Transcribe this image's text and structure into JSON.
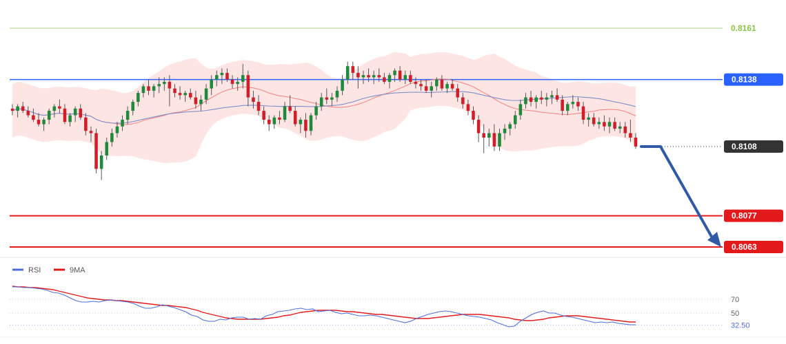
{
  "chart_data": {
    "type": "candlestick",
    "price_levels": [
      {
        "value": "0.8161",
        "role": "upper-target",
        "color": "#8bc34a"
      },
      {
        "value": "0.8138",
        "role": "resistance",
        "color": "#2962ff"
      },
      {
        "value": "0.8108",
        "role": "current-price",
        "color": "#333333"
      },
      {
        "value": "0.8077",
        "role": "support",
        "color": "#e31a1c"
      },
      {
        "value": "0.8063",
        "role": "support",
        "color": "#e31a1c"
      }
    ],
    "y_range": [
      0.804,
      0.817
    ],
    "candles": [
      [
        0.8125,
        0.8127,
        0.8122,
        0.8124
      ],
      [
        0.8124,
        0.8127,
        0.8121,
        0.8126
      ],
      [
        0.8126,
        0.8128,
        0.8123,
        0.8124
      ],
      [
        0.8124,
        0.8126,
        0.8121,
        0.8122
      ],
      [
        0.8122,
        0.8125,
        0.8119,
        0.812
      ],
      [
        0.812,
        0.8123,
        0.8117,
        0.8118
      ],
      [
        0.8118,
        0.8121,
        0.8115,
        0.812
      ],
      [
        0.812,
        0.8125,
        0.8118,
        0.8124
      ],
      [
        0.8124,
        0.8127,
        0.8121,
        0.8126
      ],
      [
        0.8126,
        0.8129,
        0.8123,
        0.8125
      ],
      [
        0.8125,
        0.8127,
        0.8118,
        0.8119
      ],
      [
        0.8119,
        0.8123,
        0.8117,
        0.8122
      ],
      [
        0.8122,
        0.8126,
        0.8119,
        0.8125
      ],
      [
        0.8125,
        0.8127,
        0.812,
        0.8121
      ],
      [
        0.8121,
        0.8123,
        0.8113,
        0.8115
      ],
      [
        0.8115,
        0.8117,
        0.811,
        0.8114
      ],
      [
        0.8114,
        0.8116,
        0.8096,
        0.8098
      ],
      [
        0.8098,
        0.8106,
        0.8093,
        0.8104
      ],
      [
        0.8104,
        0.8112,
        0.8102,
        0.811
      ],
      [
        0.811,
        0.8116,
        0.8108,
        0.8114
      ],
      [
        0.8114,
        0.8119,
        0.8112,
        0.8117
      ],
      [
        0.8117,
        0.8122,
        0.8115,
        0.812
      ],
      [
        0.812,
        0.8126,
        0.8118,
        0.8124
      ],
      [
        0.8124,
        0.8129,
        0.8122,
        0.8128
      ],
      [
        0.8128,
        0.8133,
        0.8126,
        0.8132
      ],
      [
        0.8132,
        0.8136,
        0.813,
        0.8135
      ],
      [
        0.8135,
        0.8138,
        0.8131,
        0.8133
      ],
      [
        0.8133,
        0.8136,
        0.813,
        0.8135
      ],
      [
        0.8135,
        0.8139,
        0.8132,
        0.8136
      ],
      [
        0.8136,
        0.8139,
        0.8133,
        0.8137
      ],
      [
        0.8137,
        0.814,
        0.8126,
        0.8134
      ],
      [
        0.8134,
        0.8136,
        0.813,
        0.8132
      ],
      [
        0.8132,
        0.8135,
        0.8129,
        0.8131
      ],
      [
        0.8131,
        0.8133,
        0.8128,
        0.8132
      ],
      [
        0.8132,
        0.8134,
        0.8129,
        0.813
      ],
      [
        0.813,
        0.8133,
        0.8125,
        0.8127
      ],
      [
        0.8127,
        0.8131,
        0.8124,
        0.8129
      ],
      [
        0.8129,
        0.8136,
        0.8127,
        0.8134
      ],
      [
        0.8134,
        0.814,
        0.8131,
        0.8138
      ],
      [
        0.8138,
        0.8142,
        0.8135,
        0.814
      ],
      [
        0.814,
        0.8143,
        0.8136,
        0.8141
      ],
      [
        0.8141,
        0.8143,
        0.8137,
        0.8138
      ],
      [
        0.8138,
        0.814,
        0.8134,
        0.8136
      ],
      [
        0.8136,
        0.8139,
        0.8133,
        0.8137
      ],
      [
        0.8137,
        0.8145,
        0.8134,
        0.814
      ],
      [
        0.814,
        0.8142,
        0.8126,
        0.813
      ],
      [
        0.813,
        0.8133,
        0.8125,
        0.8128
      ],
      [
        0.8128,
        0.8131,
        0.8122,
        0.8124
      ],
      [
        0.8124,
        0.8126,
        0.8118,
        0.812
      ],
      [
        0.812,
        0.8122,
        0.8115,
        0.8118
      ],
      [
        0.8118,
        0.8122,
        0.8116,
        0.8121
      ],
      [
        0.8121,
        0.8124,
        0.8118,
        0.812
      ],
      [
        0.812,
        0.8128,
        0.8119,
        0.8126
      ],
      [
        0.8126,
        0.8131,
        0.8123,
        0.8124
      ],
      [
        0.8124,
        0.8126,
        0.8117,
        0.8118
      ],
      [
        0.8118,
        0.8121,
        0.8114,
        0.812
      ],
      [
        0.812,
        0.8123,
        0.8112,
        0.8115
      ],
      [
        0.8115,
        0.8123,
        0.8113,
        0.8122
      ],
      [
        0.8122,
        0.8128,
        0.812,
        0.8126
      ],
      [
        0.8126,
        0.8132,
        0.8124,
        0.813
      ],
      [
        0.813,
        0.8134,
        0.8127,
        0.8129
      ],
      [
        0.8129,
        0.8132,
        0.8126,
        0.813
      ],
      [
        0.813,
        0.8135,
        0.8128,
        0.8133
      ],
      [
        0.8133,
        0.814,
        0.8131,
        0.8138
      ],
      [
        0.8138,
        0.8146,
        0.8136,
        0.8144
      ],
      [
        0.8144,
        0.8146,
        0.8138,
        0.8141
      ],
      [
        0.8141,
        0.8144,
        0.8134,
        0.8139
      ],
      [
        0.8139,
        0.8142,
        0.8136,
        0.814
      ],
      [
        0.814,
        0.8143,
        0.8137,
        0.8139
      ],
      [
        0.8139,
        0.8142,
        0.8136,
        0.814
      ],
      [
        0.814,
        0.8143,
        0.8137,
        0.8139
      ],
      [
        0.8139,
        0.8141,
        0.8136,
        0.8137
      ],
      [
        0.8137,
        0.8141,
        0.8134,
        0.814
      ],
      [
        0.814,
        0.8143,
        0.8137,
        0.8142
      ],
      [
        0.8142,
        0.8144,
        0.8137,
        0.8138
      ],
      [
        0.8138,
        0.8142,
        0.8136,
        0.814
      ],
      [
        0.814,
        0.8142,
        0.8136,
        0.8137
      ],
      [
        0.8137,
        0.8139,
        0.8134,
        0.8136
      ],
      [
        0.8136,
        0.8138,
        0.8133,
        0.8135
      ],
      [
        0.8135,
        0.8138,
        0.8132,
        0.8133
      ],
      [
        0.8133,
        0.8137,
        0.813,
        0.8135
      ],
      [
        0.8135,
        0.8139,
        0.8133,
        0.8138
      ],
      [
        0.8138,
        0.814,
        0.8133,
        0.8134
      ],
      [
        0.8134,
        0.8137,
        0.8132,
        0.8136
      ],
      [
        0.8136,
        0.8138,
        0.8133,
        0.8134
      ],
      [
        0.8134,
        0.8136,
        0.8128,
        0.813
      ],
      [
        0.813,
        0.8132,
        0.8125,
        0.8127
      ],
      [
        0.8127,
        0.8129,
        0.8122,
        0.8124
      ],
      [
        0.8124,
        0.8126,
        0.8118,
        0.812
      ],
      [
        0.812,
        0.8122,
        0.811,
        0.8114
      ],
      [
        0.8114,
        0.8118,
        0.8105,
        0.8112
      ],
      [
        0.8112,
        0.8116,
        0.8108,
        0.8114
      ],
      [
        0.8114,
        0.8118,
        0.8106,
        0.8108
      ],
      [
        0.8108,
        0.8116,
        0.8106,
        0.8114
      ],
      [
        0.8114,
        0.8118,
        0.8111,
        0.8116
      ],
      [
        0.8116,
        0.8119,
        0.8113,
        0.8118
      ],
      [
        0.8118,
        0.8124,
        0.8116,
        0.8122
      ],
      [
        0.8122,
        0.8129,
        0.812,
        0.8127
      ],
      [
        0.8127,
        0.8132,
        0.8125,
        0.813
      ],
      [
        0.813,
        0.8133,
        0.8126,
        0.8128
      ],
      [
        0.8128,
        0.8131,
        0.8125,
        0.813
      ],
      [
        0.813,
        0.8133,
        0.8127,
        0.8129
      ],
      [
        0.8129,
        0.8132,
        0.8126,
        0.813
      ],
      [
        0.813,
        0.8133,
        0.8127,
        0.8131
      ],
      [
        0.8131,
        0.8134,
        0.8128,
        0.8129
      ],
      [
        0.8129,
        0.8131,
        0.8122,
        0.8124
      ],
      [
        0.8124,
        0.8128,
        0.8122,
        0.8127
      ],
      [
        0.8127,
        0.8131,
        0.8125,
        0.8128
      ],
      [
        0.8128,
        0.813,
        0.8124,
        0.8126
      ],
      [
        0.8126,
        0.8128,
        0.8118,
        0.812
      ],
      [
        0.812,
        0.8123,
        0.8117,
        0.8121
      ],
      [
        0.8121,
        0.8123,
        0.8117,
        0.8118
      ],
      [
        0.8118,
        0.8121,
        0.8116,
        0.8119
      ],
      [
        0.8119,
        0.8122,
        0.8115,
        0.8117
      ],
      [
        0.8117,
        0.8121,
        0.8114,
        0.8119
      ],
      [
        0.8119,
        0.8121,
        0.8115,
        0.8116
      ],
      [
        0.8116,
        0.8119,
        0.8114,
        0.8117
      ],
      [
        0.8117,
        0.8119,
        0.8112,
        0.8114
      ],
      [
        0.8114,
        0.812,
        0.811,
        0.8112
      ],
      [
        0.8112,
        0.8114,
        0.8107,
        0.8108
      ]
    ],
    "rsi": {
      "legend": [
        {
          "label": "RSI",
          "color": "#4f6fd8"
        },
        {
          "label": "9MA",
          "color": "#e31a1c"
        }
      ],
      "levels": [
        "70",
        "50",
        "32.50"
      ],
      "y_range": [
        20,
        95
      ],
      "rsi_values": [
        88,
        88,
        87,
        87,
        86,
        85,
        83,
        80,
        79,
        76,
        72,
        68,
        66,
        66,
        67,
        66,
        68,
        69,
        68,
        67,
        66,
        64,
        60,
        57,
        57,
        59,
        62,
        60,
        58,
        55,
        52,
        47,
        45,
        40,
        38,
        38,
        41,
        40,
        43,
        44,
        44,
        41,
        42,
        41,
        46,
        48,
        52,
        53,
        54,
        56,
        57,
        55,
        56,
        52,
        53,
        54,
        51,
        49,
        50,
        48,
        46,
        46,
        47,
        46,
        44,
        42,
        40,
        38,
        36,
        38,
        42,
        45,
        48,
        50,
        52,
        53,
        52,
        50,
        48,
        46,
        45,
        44,
        42,
        40,
        36,
        33,
        30,
        31,
        38,
        43,
        48,
        51,
        53,
        50,
        50,
        47,
        45,
        44,
        42,
        40,
        38,
        36,
        37,
        36,
        37,
        35,
        34,
        33,
        33
      ],
      "ma_values": [
        89,
        88,
        88,
        87,
        87,
        86,
        85,
        84,
        82,
        80,
        78,
        76,
        74,
        72,
        71,
        70,
        69,
        69,
        68,
        68,
        67,
        66,
        65,
        64,
        63,
        62,
        61,
        61,
        60,
        59,
        58,
        56,
        54,
        51,
        49,
        47,
        45,
        43,
        42,
        41,
        41,
        41,
        41,
        41,
        42,
        43,
        44,
        46,
        47,
        49,
        51,
        52,
        53,
        54,
        54,
        54,
        54,
        53,
        52,
        52,
        51,
        50,
        49,
        48,
        48,
        47,
        46,
        45,
        44,
        43,
        42,
        42,
        42,
        43,
        44,
        45,
        46,
        47,
        48,
        48,
        48,
        48,
        47,
        46,
        45,
        44,
        43,
        41,
        40,
        39,
        39,
        40,
        41,
        43,
        44,
        45,
        46,
        46,
        46,
        45,
        44,
        43,
        42,
        41,
        40,
        39,
        38,
        37,
        37
      ]
    }
  }
}
